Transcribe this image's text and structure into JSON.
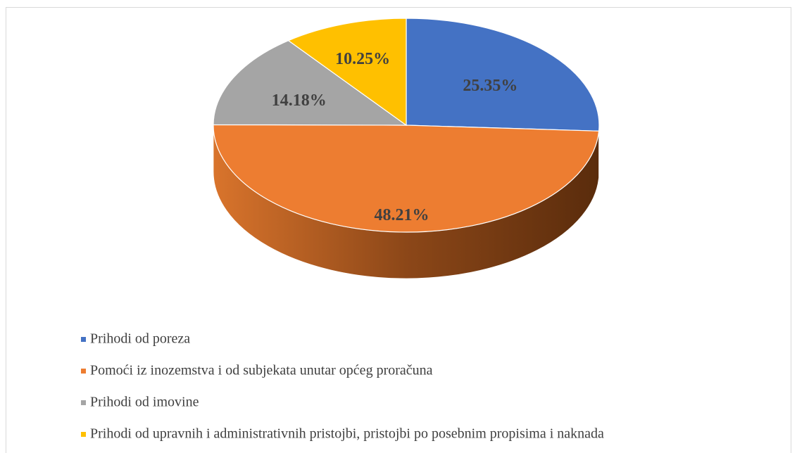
{
  "chart_data": {
    "type": "pie3d",
    "categories": [
      "Prihodi od poreza",
      "Pomoći iz inozemstva i od subjekata unutar općeg proračuna",
      "Prihodi od imovine",
      "Prihodi od upravnih i administrativnih pristojbi, pristojbi po posebnim propisima i naknada"
    ],
    "values": [
      25.35,
      48.21,
      14.18,
      10.25
    ],
    "value_labels": [
      "25.35%",
      "48.21%",
      "14.18%",
      "10.25%"
    ],
    "colors": [
      "#4472c4",
      "#ed7d31",
      "#a5a5a5",
      "#ffc000"
    ],
    "legend": "bottom"
  }
}
